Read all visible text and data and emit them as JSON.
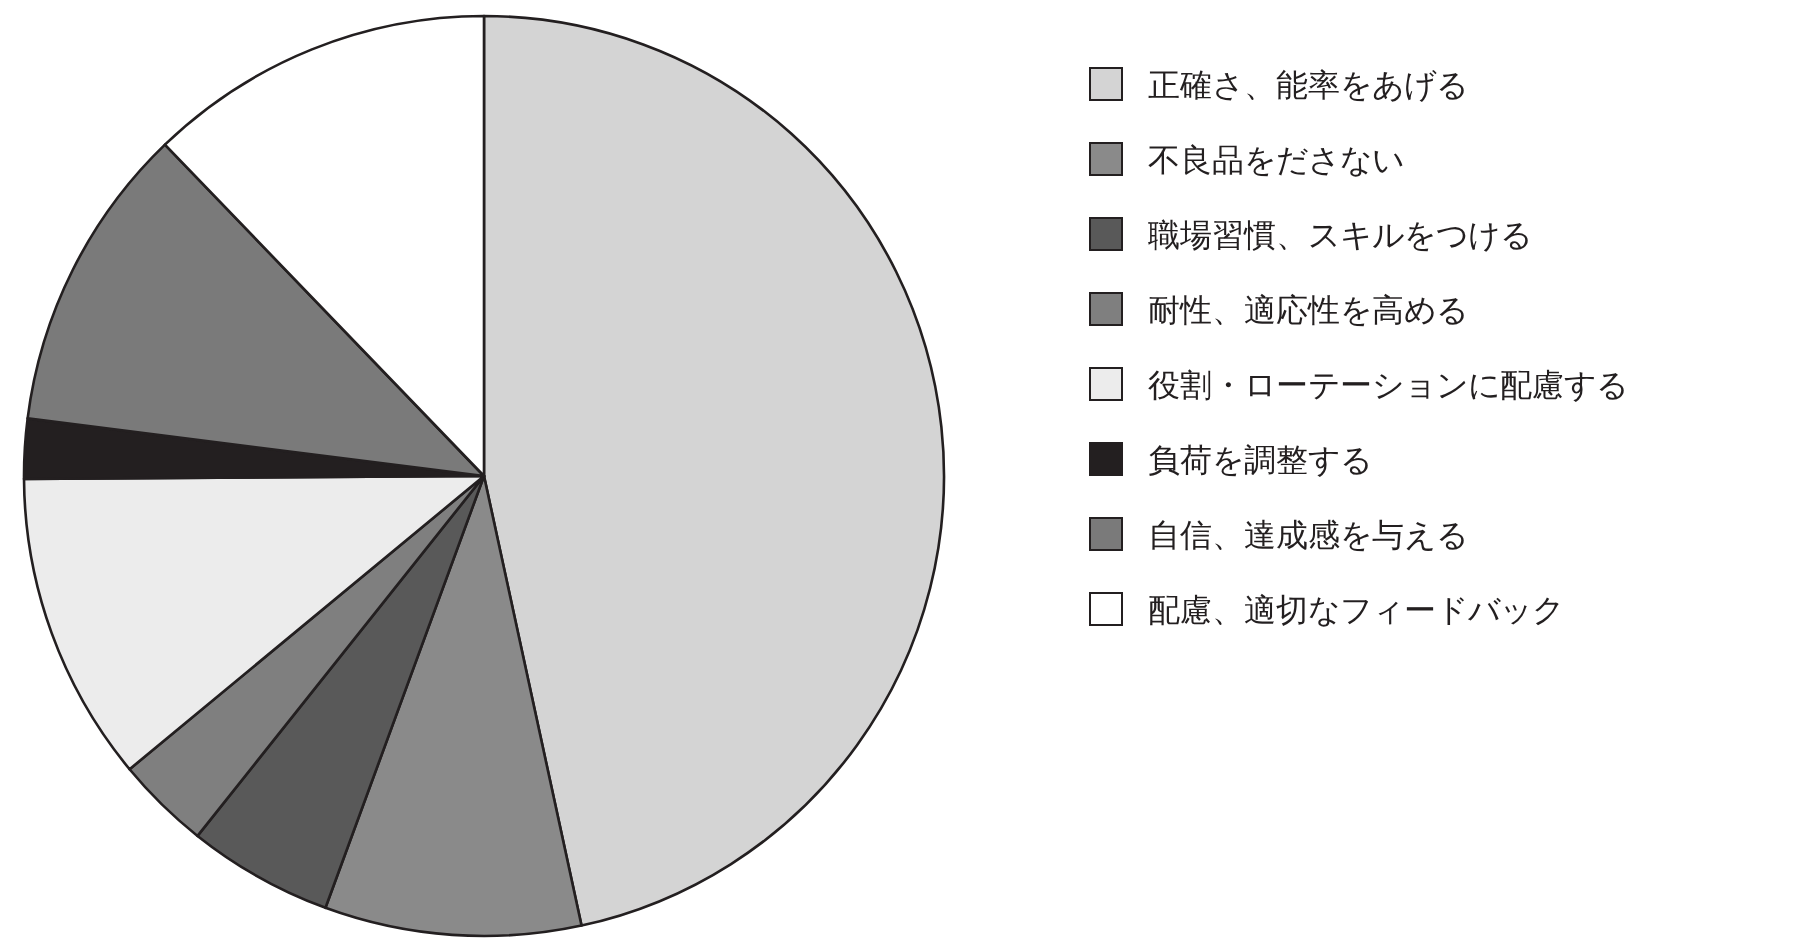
{
  "chart_data": {
    "type": "pie",
    "legend": "right",
    "categories": [
      "正確さ、能率をあげる",
      "不良品をださない",
      "職場習慣、スキルをつける",
      "耐性、適応性を高める",
      "役割・ローテーションに配慮する",
      "負荷を調整する",
      "自信、達成感を与える",
      "配慮、適切なフィードバック"
    ],
    "values": [
      46.6,
      9,
      5.1,
      3.3,
      10.9,
      2.1,
      10.8,
      12.2
    ],
    "colors": [
      "#d4d4d4",
      "#8a8a8a",
      "#595959",
      "#7f7f7f",
      "#ececec",
      "#231f20",
      "#7a7a7a",
      "#ffffff"
    ]
  }
}
